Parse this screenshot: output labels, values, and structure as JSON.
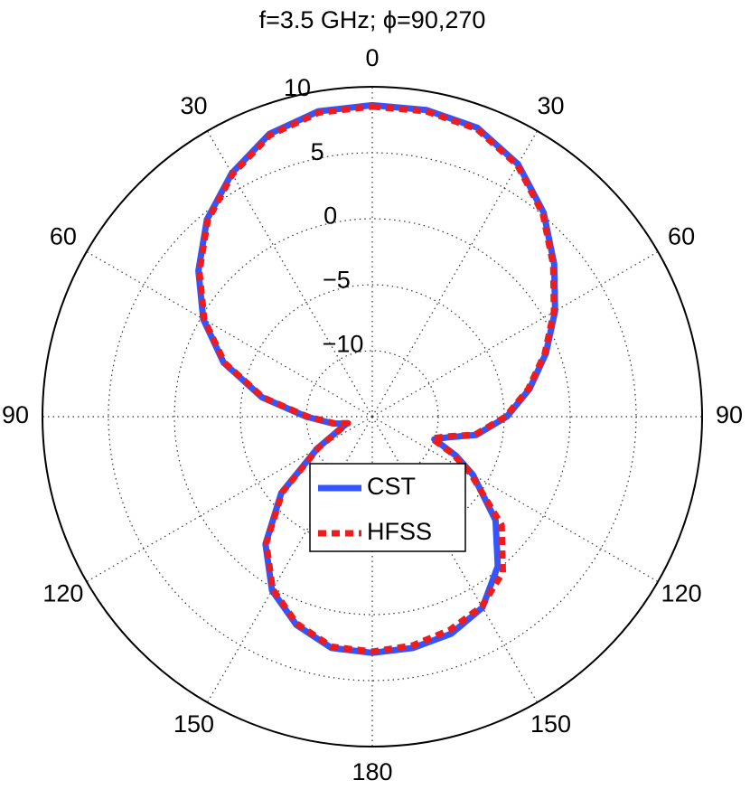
{
  "chart_data": {
    "type": "polar",
    "title": "f=3.5 GHz;   ϕ=90,270",
    "x": [
      0,
      10,
      20,
      30,
      40,
      50,
      60,
      70,
      80,
      90,
      100,
      105,
      110,
      115,
      120,
      130,
      140,
      150,
      160,
      170,
      180,
      190,
      200,
      210,
      220,
      230,
      240,
      250,
      255,
      260,
      270,
      280,
      290,
      300,
      310,
      320,
      330,
      340,
      350,
      360
    ],
    "series": [
      {
        "name": "CST",
        "color": "#3355ff",
        "dash": false,
        "values": [
          8.6,
          8.6,
          8.3,
          7.1,
          5.2,
          3.0,
          1.0,
          -1.0,
          -2.9,
          -4.8,
          -7.0,
          -9.0,
          -10.0,
          -8.0,
          -6.2,
          -2.8,
          -0.2,
          1.7,
          2.5,
          2.8,
          2.9,
          2.8,
          1.8,
          0.2,
          -2.4,
          -6.0,
          -10.2,
          -12.5,
          -13.0,
          -12.0,
          -10.0,
          -6.5,
          -3.0,
          -0.2,
          2.2,
          4.5,
          6.3,
          7.8,
          8.5,
          8.6
        ]
      },
      {
        "name": "HFSS",
        "color": "#ee1c1c",
        "dash": true,
        "values": [
          8.5,
          8.5,
          8.2,
          7.0,
          5.1,
          2.9,
          0.9,
          -1.1,
          -3.0,
          -4.9,
          -7.1,
          -9.2,
          -10.2,
          -8.2,
          -6.4,
          -2.2,
          0.4,
          1.6,
          2.2,
          2.6,
          2.8,
          2.7,
          1.7,
          0.1,
          -2.5,
          -6.1,
          -10.3,
          -12.6,
          -13.1,
          -12.1,
          -10.1,
          -6.6,
          -3.1,
          -0.3,
          2.1,
          4.4,
          6.2,
          7.7,
          8.4,
          8.5
        ]
      }
    ],
    "rlim": [
      -15,
      10
    ],
    "rticks": [
      {
        "value": -10,
        "label": "−10"
      },
      {
        "value": -5,
        "label": "−5"
      },
      0,
      5,
      10
    ],
    "thetaticks": [
      0,
      30,
      60,
      90,
      120,
      150,
      180,
      {
        "value": 210,
        "label": "150"
      },
      {
        "value": 240,
        "label": "120"
      },
      {
        "value": 270,
        "label": "90"
      },
      {
        "value": 300,
        "label": "60"
      },
      {
        "value": 330,
        "label": "30"
      }
    ],
    "grid": true
  }
}
